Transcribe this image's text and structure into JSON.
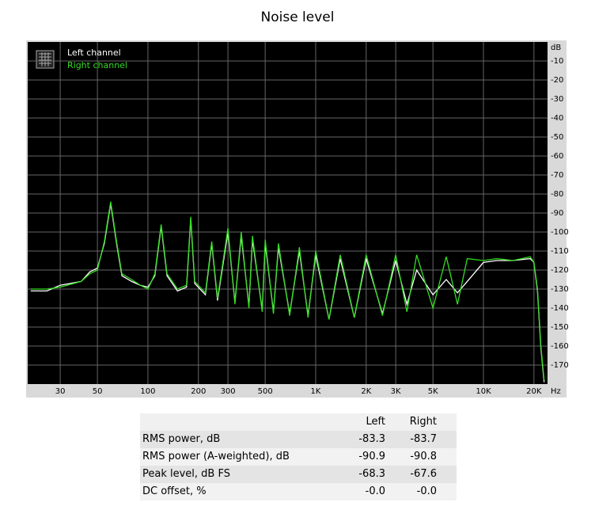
{
  "chart_data": {
    "type": "line",
    "title": "Noise level",
    "xlabel": "Hz",
    "ylabel": "dB",
    "log_x": true,
    "grid": true,
    "x": [
      20,
      25,
      30,
      40,
      45,
      50,
      55,
      60,
      65,
      70,
      80,
      90,
      100,
      110,
      120,
      130,
      150,
      170,
      180,
      190,
      220,
      240,
      260,
      300,
      330,
      360,
      400,
      420,
      480,
      500,
      560,
      600,
      700,
      800,
      900,
      1000,
      1200,
      1400,
      1700,
      2000,
      2500,
      3000,
      3500,
      4000,
      5000,
      6000,
      7000,
      8000,
      10000,
      12000,
      15000,
      19000,
      20000,
      21000,
      22000,
      23000
    ],
    "series": [
      {
        "name": "Left channel",
        "color": "#ffffff",
        "values": [
          -131,
          -131,
          -128,
          -126,
          -121,
          -119,
          -106,
          -85,
          -106,
          -123,
          -126,
          -128,
          -129,
          -123,
          -97,
          -123,
          -131,
          -129,
          -93,
          -127,
          -133,
          -106,
          -136,
          -100,
          -137,
          -102,
          -139,
          -104,
          -141,
          -106,
          -142,
          -108,
          -143,
          -110,
          -144,
          -112,
          -146,
          -114,
          -145,
          -114,
          -143,
          -115,
          -138,
          -120,
          -133,
          -125,
          -132,
          -126,
          -116,
          -115,
          -115,
          -114,
          -116,
          -131,
          -161,
          -179
        ]
      },
      {
        "name": "Right channel",
        "color": "#33dd22",
        "values": [
          -130,
          -130,
          -129,
          -126,
          -122,
          -120,
          -105,
          -84,
          -105,
          -122,
          -125,
          -128,
          -130,
          -122,
          -96,
          -122,
          -130,
          -128,
          -92,
          -126,
          -132,
          -105,
          -135,
          -98,
          -138,
          -100,
          -140,
          -102,
          -142,
          -104,
          -143,
          -106,
          -144,
          -108,
          -145,
          -110,
          -146,
          -112,
          -145,
          -112,
          -144,
          -112,
          -142,
          -112,
          -140,
          -113,
          -138,
          -114,
          -115,
          -114,
          -115,
          -113,
          -116,
          -130,
          -160,
          -178
        ]
      }
    ],
    "xlim": [
      19.2,
      24100
    ],
    "ylim": [
      -180,
      0
    ],
    "xticks": [
      30,
      50,
      100,
      200,
      300,
      500,
      {
        "value": 1000,
        "label": "1K"
      },
      {
        "value": 2000,
        "label": "2K"
      },
      {
        "value": 3000,
        "label": "3K"
      },
      {
        "value": 5000,
        "label": "5K"
      },
      {
        "value": 10000,
        "label": "10K"
      },
      {
        "value": 20000,
        "label": "20K"
      }
    ],
    "yticks": [
      -10,
      -20,
      -30,
      -40,
      -50,
      -60,
      -70,
      -80,
      -90,
      -100,
      -110,
      -120,
      -130,
      -140,
      -150,
      -160,
      -170
    ],
    "legend": "top-left"
  },
  "table": {
    "header": [
      "Left",
      "Right"
    ],
    "rows": [
      [
        "RMS power, dB",
        "-83.3",
        "-83.7"
      ],
      [
        "RMS power (A-weighted), dB",
        "-90.9",
        "-90.8"
      ],
      [
        "Peak level, dB FS",
        "-68.3",
        "-67.6"
      ],
      [
        "DC offset, %",
        "-0.0",
        "-0.0"
      ]
    ]
  }
}
